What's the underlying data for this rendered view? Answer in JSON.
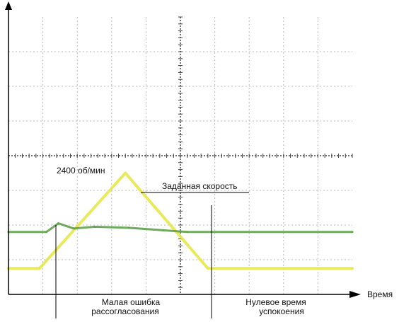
{
  "chart_data": {
    "type": "line",
    "xlabel": "Время",
    "ylabel": "",
    "x_unit_note": "x in oscilloscope screen divisions (0–10), y in vertical divisions (0–8)",
    "xlim": [
      0,
      10
    ],
    "ylim": [
      0,
      8
    ],
    "grid": true,
    "series": [
      {
        "name": "",
        "color": "#e6e84a",
        "points": [
          [
            0,
            0.75
          ],
          [
            0.9,
            0.75
          ],
          [
            3.4,
            3.5
          ],
          [
            5.8,
            0.75
          ],
          [
            10,
            0.75
          ]
        ]
      },
      {
        "name": "",
        "color": "#5fa24a",
        "points": [
          [
            0,
            1.8
          ],
          [
            1.1,
            1.8
          ],
          [
            1.45,
            2.05
          ],
          [
            1.9,
            1.9
          ],
          [
            2.5,
            1.95
          ],
          [
            3.5,
            1.92
          ],
          [
            4.5,
            1.85
          ],
          [
            5.2,
            1.8
          ],
          [
            10,
            1.8
          ]
        ]
      }
    ],
    "annotations": {
      "peak": "2400 об/мин",
      "set_speed": "Заданная скорость",
      "error_line1": "Малая ошибка",
      "error_line2": "рассогласования",
      "settle_line1": "Нулевое время",
      "settle_line2": "успокоения"
    }
  },
  "colors": {
    "grid": "#b9b9b9",
    "center_axes": "#444444",
    "axis": "#000000"
  }
}
